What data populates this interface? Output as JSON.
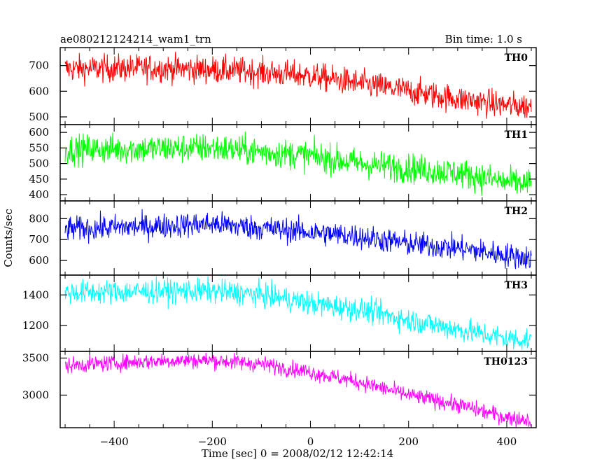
{
  "header": {
    "title": "ae080212124214_wam1_trn",
    "bin_time": "Bin time: 1.0 s"
  },
  "chart_data": {
    "type": "line",
    "xlabel": "Time [sec] 0 = 2008/02/12 12:42:14",
    "ylabel": "Counts/sec",
    "xlim": [
      -510,
      460
    ],
    "x_range": [
      -500,
      450
    ],
    "x_step": 1.0,
    "xticks": [
      -400,
      -200,
      0,
      200,
      400
    ],
    "xtick_labels": [
      "−400",
      "−200",
      "0",
      "200",
      "400"
    ],
    "grid": false,
    "panels": [
      {
        "name": "TH0",
        "color": "#ff0000",
        "ylim": [
          470,
          770
        ],
        "yticks": [
          500,
          600,
          700
        ],
        "ytick_labels": [
          "500",
          "600",
          "700"
        ],
        "trend": [
          [
            -500,
            688
          ],
          [
            -300,
            690
          ],
          [
            -150,
            680
          ],
          [
            0,
            660
          ],
          [
            100,
            630
          ],
          [
            200,
            600
          ],
          [
            300,
            570
          ],
          [
            400,
            545
          ],
          [
            450,
            540
          ]
        ],
        "noise": 27,
        "ranges": [
          [
            -500,
            490,
            760
          ],
          [
            -200,
            610,
            760
          ],
          [
            100,
            550,
            730
          ],
          [
            450,
            490,
            560
          ]
        ]
      },
      {
        "name": "TH1",
        "color": "#00ff00",
        "ylim": [
          380,
          625
        ],
        "yticks": [
          400,
          450,
          500,
          550,
          600
        ],
        "ytick_labels": [
          "400",
          "450",
          "500",
          "550",
          "600"
        ],
        "trend": [
          [
            -500,
            545
          ],
          [
            -300,
            548
          ],
          [
            -200,
            550
          ],
          [
            0,
            525
          ],
          [
            100,
            500
          ],
          [
            200,
            485
          ],
          [
            300,
            470
          ],
          [
            400,
            440
          ],
          [
            450,
            435
          ]
        ],
        "noise": 24,
        "ranges": [
          [
            -500,
            460,
            620
          ],
          [
            -200,
            470,
            620
          ],
          [
            100,
            430,
            590
          ],
          [
            450,
            390,
            470
          ]
        ]
      },
      {
        "name": "TH2",
        "color": "#0000ff",
        "ylim": [
          530,
          885
        ],
        "yticks": [
          600,
          700,
          800
        ],
        "ytick_labels": [
          "600",
          "700",
          "800"
        ],
        "trend": [
          [
            -500,
            750
          ],
          [
            -300,
            765
          ],
          [
            -200,
            775
          ],
          [
            0,
            735
          ],
          [
            100,
            715
          ],
          [
            200,
            680
          ],
          [
            300,
            660
          ],
          [
            400,
            625
          ],
          [
            450,
            610
          ]
        ],
        "noise": 30,
        "ranges": [
          [
            -500,
            680,
            860
          ],
          [
            -200,
            680,
            870
          ],
          [
            100,
            630,
            800
          ],
          [
            450,
            540,
            660
          ]
        ]
      },
      {
        "name": "TH3",
        "color": "#00ffff",
        "ylim": [
          1030,
          1530
        ],
        "yticks": [
          1200,
          1400
        ],
        "ytick_labels": [
          "1200",
          "1400"
        ],
        "trend": [
          [
            -500,
            1415
          ],
          [
            -300,
            1425
          ],
          [
            -200,
            1425
          ],
          [
            -100,
            1400
          ],
          [
            0,
            1345
          ],
          [
            100,
            1305
          ],
          [
            200,
            1235
          ],
          [
            300,
            1175
          ],
          [
            400,
            1115
          ],
          [
            450,
            1105
          ]
        ],
        "noise": 40,
        "ranges": [
          [
            -500,
            1250,
            1530
          ],
          [
            -200,
            1300,
            1530
          ],
          [
            100,
            1130,
            1440
          ],
          [
            450,
            1040,
            1170
          ]
        ]
      },
      {
        "name": "TH0123",
        "color": "#ff00ff",
        "ylim": [
          2560,
          3590
        ],
        "yticks": [
          3000,
          3500
        ],
        "ytick_labels": [
          "3000",
          "3500"
        ],
        "trend": [
          [
            -500,
            3400
          ],
          [
            -300,
            3465
          ],
          [
            -200,
            3470
          ],
          [
            -100,
            3420
          ],
          [
            0,
            3310
          ],
          [
            100,
            3175
          ],
          [
            200,
            3000
          ],
          [
            300,
            2870
          ],
          [
            400,
            2700
          ],
          [
            450,
            2660
          ]
        ],
        "noise": 55,
        "ranges": [
          [
            -500,
            3250,
            3560
          ],
          [
            -200,
            3330,
            3570
          ],
          [
            100,
            2930,
            3350
          ],
          [
            450,
            2570,
            2760
          ]
        ]
      }
    ]
  }
}
